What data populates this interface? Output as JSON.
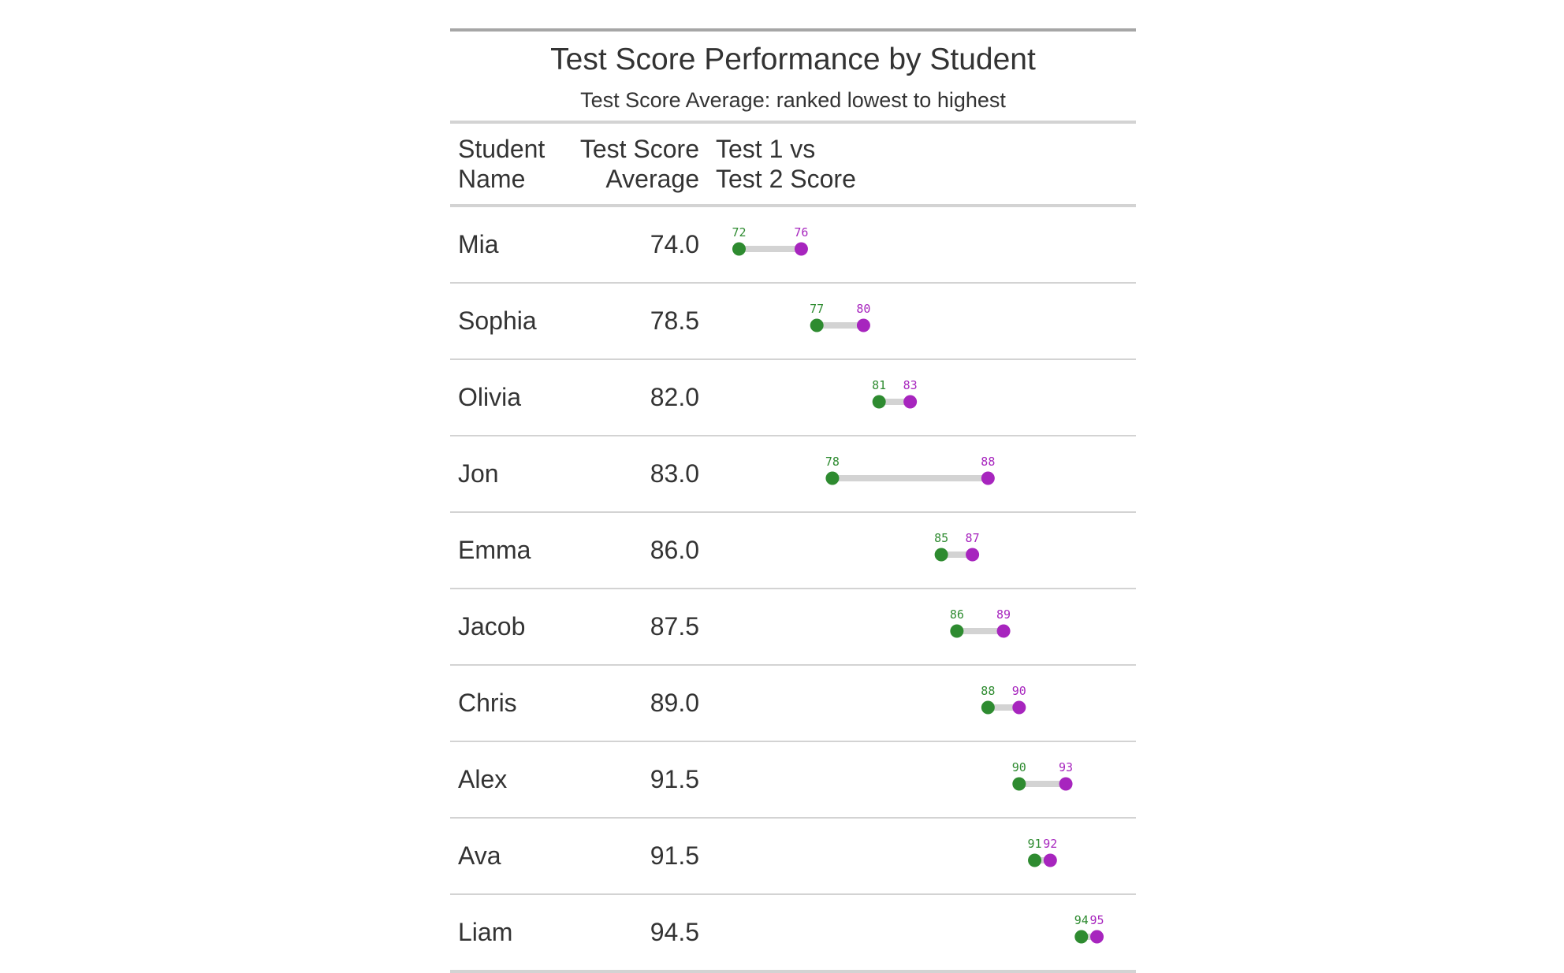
{
  "title": "Test Score Performance by Student",
  "subtitle": "Test Score Average: ranked lowest to highest",
  "columns": {
    "name": [
      "Student",
      "Name"
    ],
    "average": [
      "Test Score",
      "Average"
    ],
    "plot": [
      "Test 1 vs",
      "Test 2 Score"
    ]
  },
  "colors": {
    "test1": "#2e8b30",
    "test2": "#a725be",
    "connector": "#d3d3d3"
  },
  "chart_data": {
    "type": "table",
    "x_range": [
      70,
      97
    ],
    "rows": [
      {
        "name": "Mia",
        "average": "74.0",
        "test1": 72,
        "test2": 76
      },
      {
        "name": "Sophia",
        "average": "78.5",
        "test1": 77,
        "test2": 80
      },
      {
        "name": "Olivia",
        "average": "82.0",
        "test1": 81,
        "test2": 83
      },
      {
        "name": "Jon",
        "average": "83.0",
        "test1": 78,
        "test2": 88
      },
      {
        "name": "Emma",
        "average": "86.0",
        "test1": 85,
        "test2": 87
      },
      {
        "name": "Jacob",
        "average": "87.5",
        "test1": 86,
        "test2": 89
      },
      {
        "name": "Chris",
        "average": "89.0",
        "test1": 88,
        "test2": 90
      },
      {
        "name": "Alex",
        "average": "91.5",
        "test1": 90,
        "test2": 93
      },
      {
        "name": "Ava",
        "average": "91.5",
        "test1": 91,
        "test2": 92
      },
      {
        "name": "Liam",
        "average": "94.5",
        "test1": 94,
        "test2": 95
      }
    ]
  }
}
